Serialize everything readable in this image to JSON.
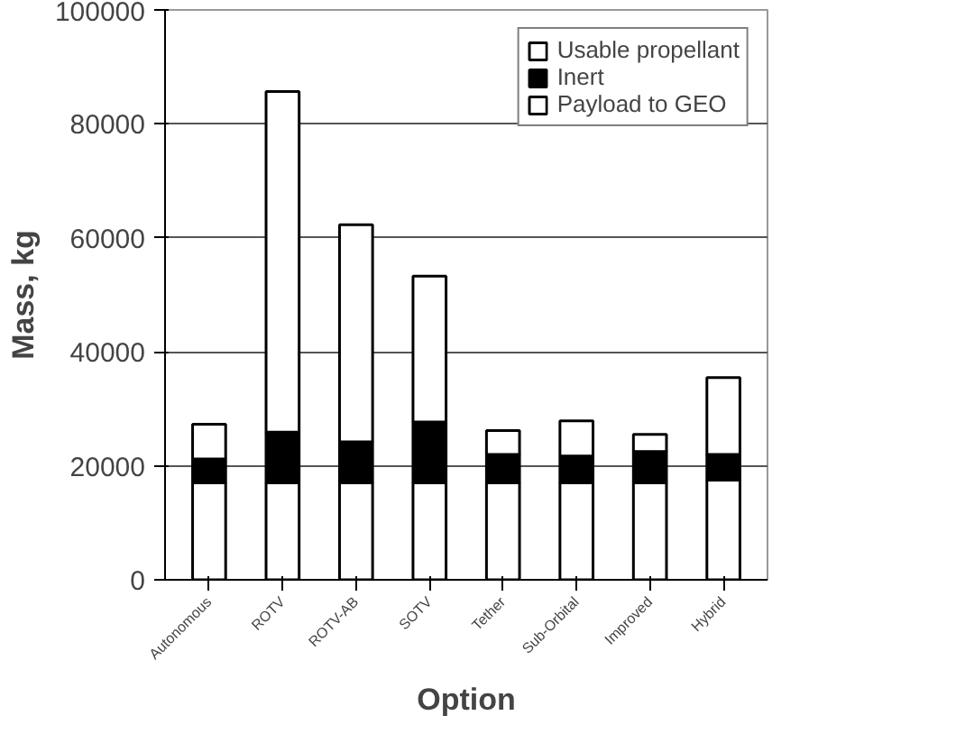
{
  "chart_data": {
    "type": "bar",
    "stacked": true,
    "xlabel": "Option",
    "ylabel": "Mass, kg",
    "categories": [
      "Autonomous",
      "ROTV",
      "ROTV-AB",
      "SOTV",
      "Tether",
      "Sub-Orbital",
      "Improved",
      "Hybrid"
    ],
    "series": [
      {
        "name": "Payload to GEO",
        "color": "#ffffff",
        "values": [
          17000,
          17000,
          17000,
          17000,
          17000,
          17000,
          17000,
          17500
        ]
      },
      {
        "name": "Inert",
        "color": "#000000",
        "values": [
          4200,
          8900,
          7200,
          10700,
          5000,
          4700,
          5500,
          4500
        ]
      },
      {
        "name": "Usable propellant",
        "color": "#ffffff",
        "values": [
          6100,
          59800,
          38100,
          25600,
          4200,
          6200,
          3000,
          13500
        ]
      }
    ],
    "ylim": [
      0,
      100000
    ],
    "yticks": [
      0,
      20000,
      40000,
      60000,
      80000,
      100000
    ],
    "grid": "y",
    "legend": "top right"
  }
}
